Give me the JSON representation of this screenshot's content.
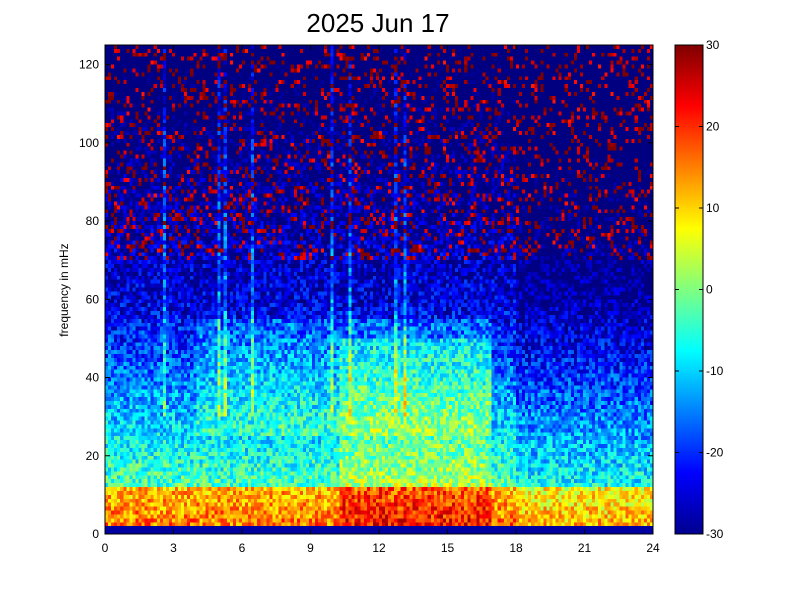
{
  "chart_data": {
    "type": "heatmap",
    "title": "2025 Jun 17",
    "xlabel": "",
    "ylabel": "frequency in mHz",
    "xlim": [
      0,
      24
    ],
    "ylim": [
      0,
      125
    ],
    "xticks": [
      0,
      3,
      6,
      9,
      12,
      15,
      18,
      21,
      24
    ],
    "yticks": [
      0,
      20,
      40,
      60,
      80,
      100,
      120
    ],
    "colorbar": {
      "colormap": "jet",
      "range": [
        -30,
        30
      ],
      "ticks": [
        -30,
        -20,
        -10,
        0,
        10,
        20,
        30
      ]
    },
    "grid": false,
    "features": {
      "vertical_streaks_hours": [
        2.6,
        5.0,
        5.2,
        6.5,
        9.9,
        10.7,
        12.7,
        13.2
      ],
      "hot_band_hours": [
        10.3,
        17.0
      ],
      "hot_band_mHz": [
        30,
        45
      ],
      "low_freq_band_mHz": [
        2,
        12
      ]
    }
  }
}
